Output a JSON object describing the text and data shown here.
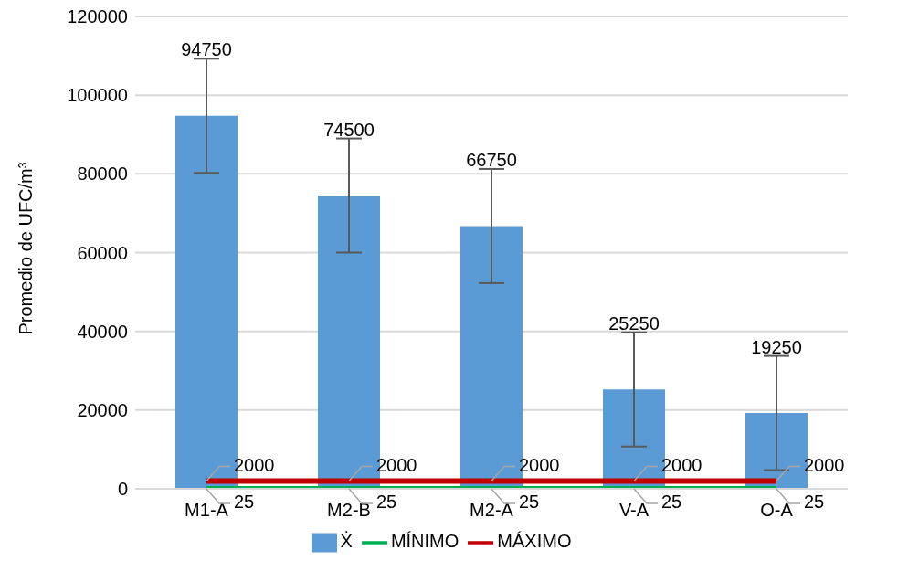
{
  "chart_data": {
    "type": "bar",
    "ylabel": "Promedio de UFC/m³",
    "categories": [
      "M1-A",
      "M2-B",
      "M2-A",
      "V-A",
      "O-A"
    ],
    "series": [
      {
        "name": "Ẋ",
        "color": "#5b9bd5",
        "values": [
          94750,
          74500,
          66750,
          25250,
          19250
        ],
        "errors": [
          14500,
          14500,
          14500,
          14500,
          14500
        ]
      },
      {
        "name": "MÍNIMO",
        "type": "line",
        "color": "#00b050",
        "values": [
          25,
          25,
          25,
          25,
          25
        ]
      },
      {
        "name": "MÁXIMO",
        "type": "line",
        "color": "#c00000",
        "values": [
          2000,
          2000,
          2000,
          2000,
          2000
        ]
      }
    ],
    "ylim": [
      0,
      120000
    ],
    "yticks": [
      0,
      20000,
      40000,
      60000,
      80000,
      100000,
      120000
    ],
    "grid": "y",
    "legend": "bottom",
    "data_labels": true,
    "marker": "none"
  }
}
